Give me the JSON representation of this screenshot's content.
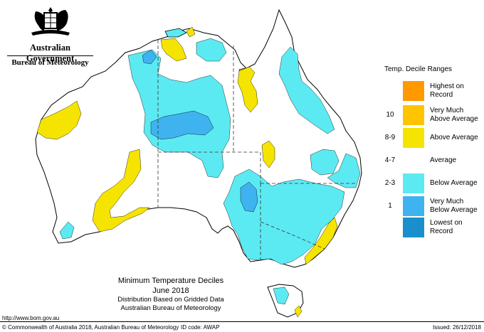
{
  "header": {
    "government": "Australian Government",
    "bureau": "Bureau of Meteorology"
  },
  "legend": {
    "title": "Temp. Decile Ranges",
    "items": [
      {
        "code": "",
        "label_line1": "Highest on",
        "label_line2": "Record",
        "color": "#ff9900"
      },
      {
        "code": "10",
        "label_line1": "Very Much",
        "label_line2": "Above Average",
        "color": "#ffc400"
      },
      {
        "code": "8-9",
        "label_line1": "Above Average",
        "label_line2": "",
        "color": "#f5e400"
      },
      {
        "code": "4-7",
        "label_line1": "Average",
        "label_line2": "",
        "color": "#ffffff"
      },
      {
        "code": "2-3",
        "label_line1": "Below Average",
        "label_line2": "",
        "color": "#5ceaf2"
      },
      {
        "code": "1",
        "label_line1": "Very Much",
        "label_line2": "Below Average",
        "color": "#3fb3f0"
      },
      {
        "code": "",
        "label_line1": "Lowest on",
        "label_line2": "Record",
        "color": "#1a8fcc"
      }
    ]
  },
  "caption": {
    "title": "Minimum Temperature Deciles",
    "period": "June 2018",
    "line1": "Distribution Based on Gridded Data",
    "line2": "Australian Bureau of Meteorology"
  },
  "footer": {
    "url": "http://www.bom.gov.au",
    "copyright": "© Commonwealth of Australia 2018, Australian Bureau of Meteorology",
    "id_code": "ID code: AWAP",
    "issued": "Issued: 26/12/2018"
  },
  "map_colors": {
    "land_average": "#ffffff",
    "above_average": "#f5e400",
    "below_average": "#5ceaf2",
    "very_much_below": "#3fb3f0"
  }
}
